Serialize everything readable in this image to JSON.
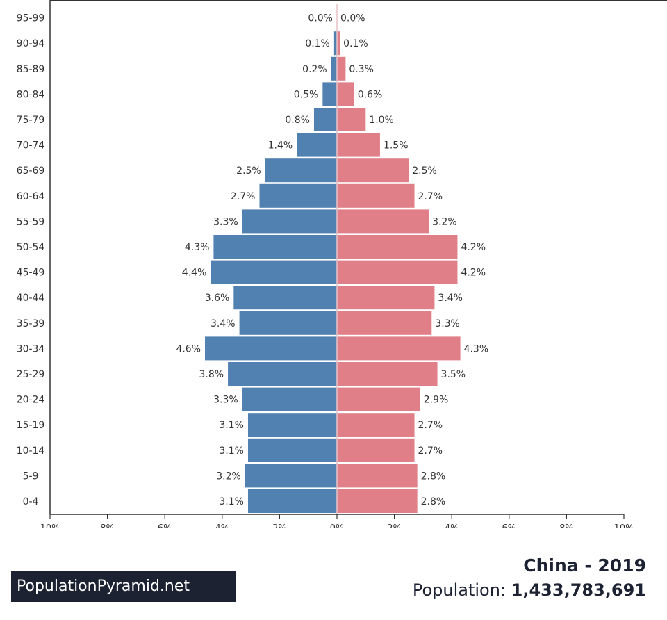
{
  "chart_data": {
    "type": "bar",
    "orientation": "horizontal-pyramid",
    "categories": [
      "0-4",
      "5-9",
      "10-14",
      "15-19",
      "20-24",
      "25-29",
      "30-34",
      "35-39",
      "40-44",
      "45-49",
      "50-54",
      "55-59",
      "60-64",
      "65-69",
      "70-74",
      "75-79",
      "80-84",
      "85-89",
      "90-94",
      "95-99"
    ],
    "series": [
      {
        "name": "",
        "side": "left",
        "color": "#5181b1",
        "values": [
          3.1,
          3.2,
          3.1,
          3.1,
          3.3,
          3.8,
          4.6,
          3.4,
          3.6,
          4.4,
          4.3,
          3.3,
          2.7,
          2.5,
          1.4,
          0.8,
          0.5,
          0.2,
          0.1,
          0.0
        ],
        "labels": [
          "3.1%",
          "3.2%",
          "3.1%",
          "3.1%",
          "3.3%",
          "3.8%",
          "4.6%",
          "3.4%",
          "3.6%",
          "4.4%",
          "4.3%",
          "3.3%",
          "2.7%",
          "2.5%",
          "1.4%",
          "0.8%",
          "0.5%",
          "0.2%",
          "0.1%",
          "0.0%"
        ]
      },
      {
        "name": "",
        "side": "right",
        "color": "#e07f88",
        "values": [
          2.8,
          2.8,
          2.7,
          2.7,
          2.9,
          3.5,
          4.3,
          3.3,
          3.4,
          4.2,
          4.2,
          3.2,
          2.7,
          2.5,
          1.5,
          1.0,
          0.6,
          0.3,
          0.1,
          0.0
        ],
        "labels": [
          "2.8%",
          "2.8%",
          "2.7%",
          "2.7%",
          "2.9%",
          "3.5%",
          "4.3%",
          "3.3%",
          "3.4%",
          "4.2%",
          "4.2%",
          "3.2%",
          "2.7%",
          "2.5%",
          "1.5%",
          "1.0%",
          "0.6%",
          "0.3%",
          "0.1%",
          "0.0%"
        ]
      }
    ],
    "xlim": [
      -10,
      10
    ],
    "x_ticks": [
      -10,
      -8,
      -6,
      -4,
      -2,
      0,
      2,
      4,
      6,
      8,
      10
    ],
    "x_tick_labels": [
      "10%",
      "8%",
      "6%",
      "4%",
      "2%",
      "0%",
      "2%",
      "4%",
      "6%",
      "8%",
      "10%"
    ],
    "title": "China - 2019",
    "xlabel": "",
    "ylabel": "",
    "grid": false,
    "legend": "none"
  },
  "footer": {
    "brand": "PopulationPyramid.net",
    "title": "China - 2019",
    "population_label": "Population:",
    "population_value": "1,433,783,691"
  }
}
